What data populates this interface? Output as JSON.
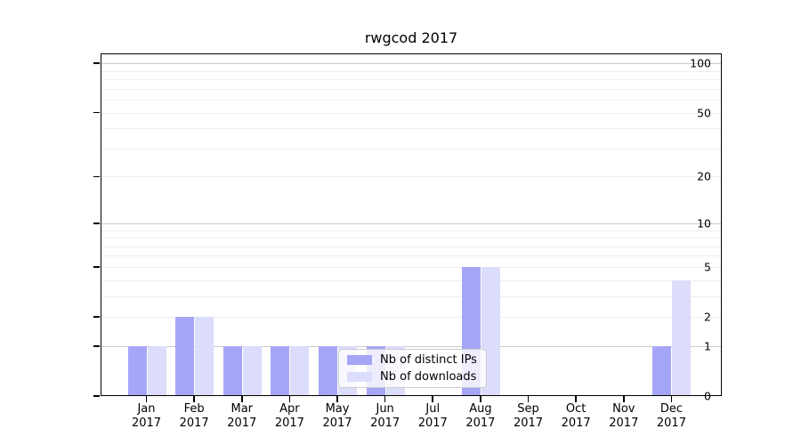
{
  "title": "rwgcod 2017",
  "chart_data": {
    "type": "bar",
    "title": "rwgcod 2017",
    "categories": [
      "Jan",
      "Feb",
      "Mar",
      "Apr",
      "May",
      "Jun",
      "Jul",
      "Aug",
      "Sep",
      "Oct",
      "Nov",
      "Dec"
    ],
    "x_year_label": "2017",
    "series": [
      {
        "name": "Nb of distinct IPs",
        "color": "#a6a6f8",
        "values": [
          1,
          2,
          1,
          1,
          1,
          1,
          0,
          5,
          0,
          0,
          0,
          1
        ]
      },
      {
        "name": "Nb of downloads",
        "color": "#dcdcfb",
        "values": [
          1,
          2,
          1,
          1,
          1,
          1,
          0,
          5,
          0,
          0,
          0,
          4
        ]
      }
    ],
    "yscale": "log1p",
    "ylim": [
      0,
      115
    ],
    "yticks": [
      0,
      1,
      2,
      5,
      10,
      20,
      50,
      100
    ],
    "grid": true,
    "grid_major_values": [
      1,
      10,
      100
    ],
    "grid_minor_values": [
      2,
      3,
      4,
      5,
      6,
      7,
      8,
      9,
      20,
      30,
      40,
      50,
      60,
      70,
      80,
      90
    ],
    "grid_major_color": "#c9c9c9",
    "grid_minor_color": "#eeeeee",
    "axis_color": "#000000",
    "legend_position": "lower center",
    "xlabel": "",
    "ylabel": ""
  }
}
